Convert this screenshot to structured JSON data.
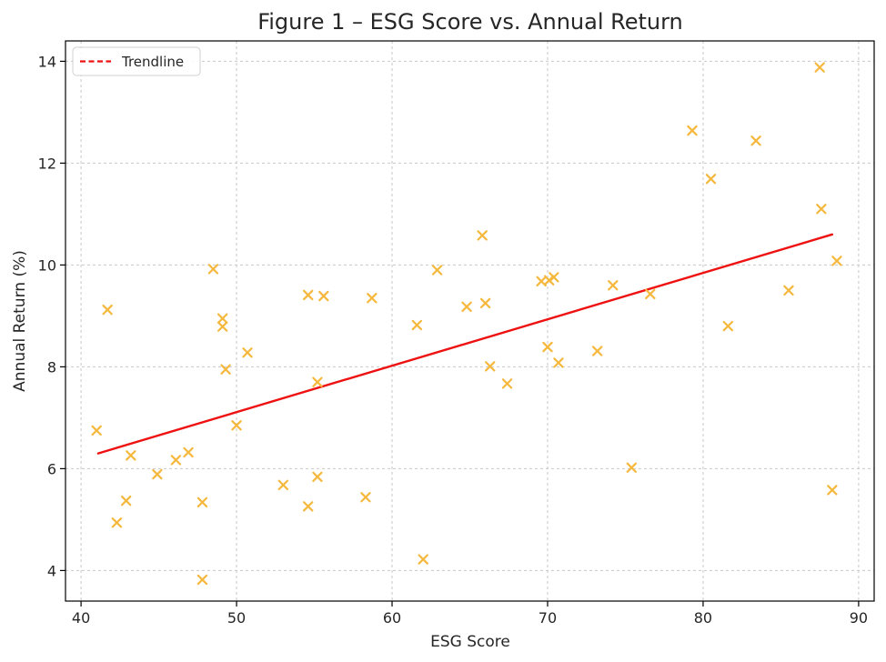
{
  "chart_data": {
    "type": "scatter",
    "title": "Figure 1 – ESG Score vs. Annual Return",
    "xlabel": "ESG Score",
    "ylabel": "Annual Return (%)",
    "xlim": [
      39,
      91
    ],
    "ylim": [
      3.4,
      14.4
    ],
    "xticks": [
      40,
      50,
      60,
      70,
      80,
      90
    ],
    "yticks": [
      4,
      6,
      8,
      10,
      12,
      14
    ],
    "grid": true,
    "legend_position": "top-left",
    "marker_color": "#f5b83d",
    "trend_color": "#ee1111",
    "series": [
      {
        "marker": "x",
        "points": [
          [
            41.0,
            6.75
          ],
          [
            41.7,
            9.12
          ],
          [
            42.3,
            4.94
          ],
          [
            42.9,
            5.37
          ],
          [
            43.2,
            6.26
          ],
          [
            44.9,
            5.89
          ],
          [
            46.1,
            6.17
          ],
          [
            46.9,
            6.32
          ],
          [
            47.8,
            5.34
          ],
          [
            47.8,
            3.82
          ],
          [
            48.5,
            9.92
          ],
          [
            49.1,
            8.95
          ],
          [
            49.1,
            8.79
          ],
          [
            49.3,
            7.95
          ],
          [
            50.0,
            6.85
          ],
          [
            50.7,
            8.28
          ],
          [
            53.0,
            5.68
          ],
          [
            54.6,
            9.41
          ],
          [
            54.6,
            5.26
          ],
          [
            55.2,
            7.7
          ],
          [
            55.2,
            5.84
          ],
          [
            55.6,
            9.39
          ],
          [
            58.3,
            5.44
          ],
          [
            58.7,
            9.35
          ],
          [
            61.6,
            8.82
          ],
          [
            62.0,
            4.22
          ],
          [
            62.9,
            9.9
          ],
          [
            64.8,
            9.18
          ],
          [
            65.8,
            10.58
          ],
          [
            66.0,
            9.25
          ],
          [
            66.3,
            8.01
          ],
          [
            67.4,
            7.67
          ],
          [
            69.6,
            9.68
          ],
          [
            70.0,
            8.39
          ],
          [
            70.1,
            9.7
          ],
          [
            70.4,
            9.76
          ],
          [
            70.7,
            8.08
          ],
          [
            73.2,
            8.31
          ],
          [
            74.2,
            9.6
          ],
          [
            75.4,
            6.02
          ],
          [
            76.6,
            9.43
          ],
          [
            79.3,
            12.64
          ],
          [
            80.5,
            11.69
          ],
          [
            81.6,
            8.8
          ],
          [
            83.4,
            12.44
          ],
          [
            85.5,
            9.5
          ],
          [
            87.5,
            13.88
          ],
          [
            87.6,
            11.1
          ],
          [
            88.3,
            5.58
          ],
          [
            88.6,
            10.08
          ]
        ]
      },
      {
        "name": "Trendline",
        "line": [
          [
            41.1,
            6.3
          ],
          [
            88.3,
            10.6
          ]
        ]
      }
    ]
  }
}
